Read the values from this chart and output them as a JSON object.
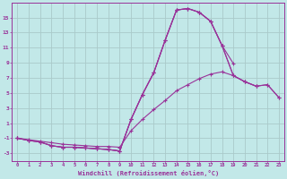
{
  "title": "",
  "xlabel": "Windchill (Refroidissement éolien,°C)",
  "ylabel": "",
  "bg_color": "#c2e8e8",
  "grid_color": "#aacaca",
  "line_color": "#993399",
  "xlim": [
    -0.5,
    23.5
  ],
  "ylim": [
    -4,
    17
  ],
  "xticks": [
    0,
    1,
    2,
    3,
    4,
    5,
    6,
    7,
    8,
    9,
    10,
    11,
    12,
    13,
    14,
    15,
    16,
    17,
    18,
    19,
    20,
    21,
    22,
    23
  ],
  "yticks": [
    -3,
    -1,
    1,
    3,
    5,
    7,
    9,
    11,
    13,
    15
  ],
  "series": [
    {
      "x": [
        0,
        1,
        2,
        3,
        4,
        5,
        6,
        7,
        8,
        9,
        10,
        11,
        12,
        13,
        14,
        15,
        16,
        17,
        18,
        19
      ],
      "y": [
        -1,
        -1.3,
        -1.5,
        -2.0,
        -2.2,
        -2.2,
        -2.3,
        -2.4,
        -2.5,
        -2.7,
        1.5,
        4.8,
        7.7,
        12.0,
        16.0,
        16.2,
        15.7,
        14.5,
        11.3,
        8.9
      ]
    },
    {
      "x": [
        0,
        1,
        2,
        3,
        4,
        5,
        6,
        7,
        8,
        9,
        10,
        11,
        12,
        13,
        14,
        15,
        16,
        17,
        18,
        19,
        20,
        21
      ],
      "y": [
        -1,
        -1.3,
        -1.5,
        -2.0,
        -2.2,
        -2.2,
        -2.3,
        -2.4,
        -2.5,
        -2.7,
        1.5,
        4.8,
        7.7,
        12.0,
        16.0,
        16.2,
        15.7,
        14.5,
        11.3,
        7.3,
        6.5,
        5.9
      ]
    },
    {
      "x": [
        0,
        1,
        2,
        3,
        4,
        5,
        6,
        7,
        8,
        9,
        10,
        11,
        12,
        13,
        14,
        15,
        16,
        17,
        18,
        19,
        20,
        21,
        22,
        23
      ],
      "y": [
        -1,
        -1.3,
        -1.5,
        -2.0,
        -2.2,
        -2.2,
        -2.3,
        -2.4,
        -2.5,
        -2.7,
        1.5,
        4.8,
        7.7,
        12.0,
        16.0,
        16.2,
        15.7,
        14.5,
        11.3,
        7.3,
        6.5,
        5.9,
        6.1,
        4.4
      ]
    },
    {
      "x": [
        0,
        1,
        2,
        3,
        4,
        5,
        6,
        7,
        8,
        9,
        10,
        11,
        12,
        13,
        14,
        15,
        16,
        17,
        18,
        19,
        20,
        21,
        22,
        23
      ],
      "y": [
        -1,
        -1.2,
        -1.4,
        -1.6,
        -1.8,
        -1.9,
        -2.0,
        -2.1,
        -2.1,
        -2.2,
        0.0,
        1.5,
        2.8,
        4.0,
        5.3,
        6.1,
        6.9,
        7.5,
        7.8,
        7.3,
        6.5,
        5.9,
        6.1,
        4.4
      ]
    }
  ]
}
